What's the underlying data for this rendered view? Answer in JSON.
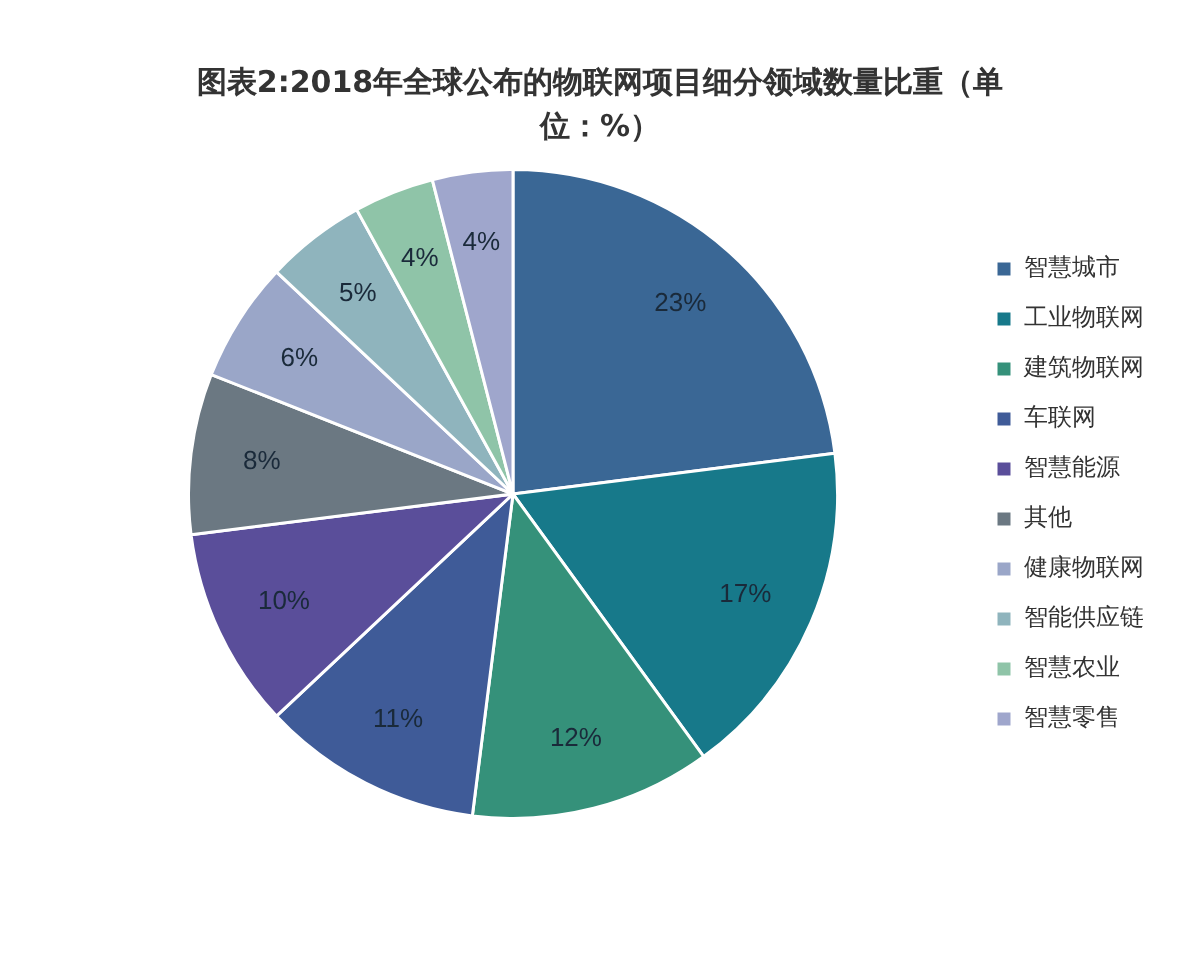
{
  "chart_data": {
    "type": "pie",
    "title": "图表2:2018年全球公布的物联网项目细分领域数量比重（单位：%）",
    "categories": [
      "智慧城市",
      "工业物联网",
      "建筑物联网",
      "车联网",
      "智慧能源",
      "其他",
      "健康物联网",
      "智能供应链",
      "智慧农业",
      "智慧零售"
    ],
    "values": [
      23,
      17,
      12,
      11,
      10,
      8,
      6,
      5,
      4,
      4
    ],
    "colors": [
      "#3a6795",
      "#17798a",
      "#35917a",
      "#3f5b98",
      "#5a4e9a",
      "#6b7882",
      "#9aa6c8",
      "#8fb4bd",
      "#8fc4a8",
      "#9fa6cc"
    ],
    "value_labels": [
      "23%",
      "17%",
      "12%",
      "11%",
      "10%",
      "8%",
      "6%",
      "5%",
      "4%",
      "4%"
    ],
    "legend": "right"
  }
}
